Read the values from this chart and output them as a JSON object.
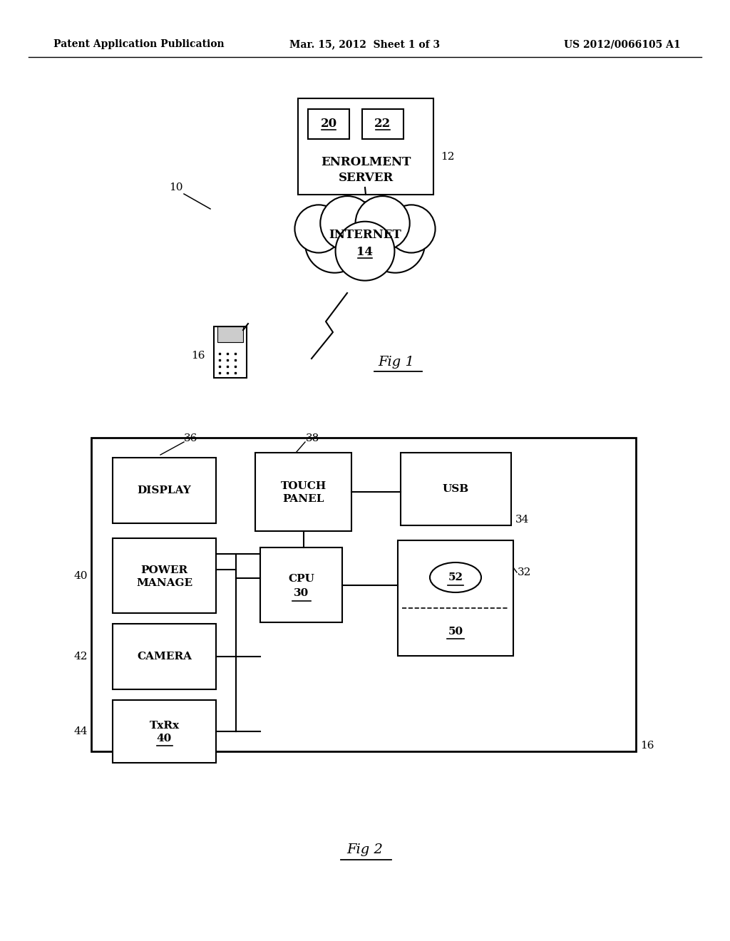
{
  "bg_color": "#ffffff",
  "text_color": "#000000",
  "header_left": "Patent Application Publication",
  "header_mid": "Mar. 15, 2012  Sheet 1 of 3",
  "header_right": "US 2012/0066105 A1",
  "fig1_label": "Fig 1",
  "fig2_label": "Fig 2",
  "fig1_ref10": "10",
  "fig1_ref12": "12",
  "fig1_ref16": "16",
  "server_label1": "ENROLMENT",
  "server_label2": "SERVER",
  "internet_label1": "INTERNET",
  "internet_label2": "14",
  "server_box20": "20",
  "server_box22": "22",
  "fig2_ref16": "16",
  "fig2_ref32": "32",
  "fig2_ref34": "34",
  "fig2_ref36": "36",
  "fig2_ref38": "38",
  "fig2_ref40_left": "40",
  "fig2_ref42": "42",
  "fig2_ref44": "44",
  "display_label": "DISPLAY",
  "touch_label1": "TOUCH",
  "touch_label2": "PANEL",
  "usb_label": "USB",
  "power_label1": "POWER",
  "power_label2": "MANAGE",
  "cpu_label1": "CPU",
  "cpu_label2": "30",
  "camera_label": "CAMERA",
  "txrx_label1": "TxRx",
  "txrx_label2": "40",
  "mem52_label": "52",
  "mem50_label": "50"
}
